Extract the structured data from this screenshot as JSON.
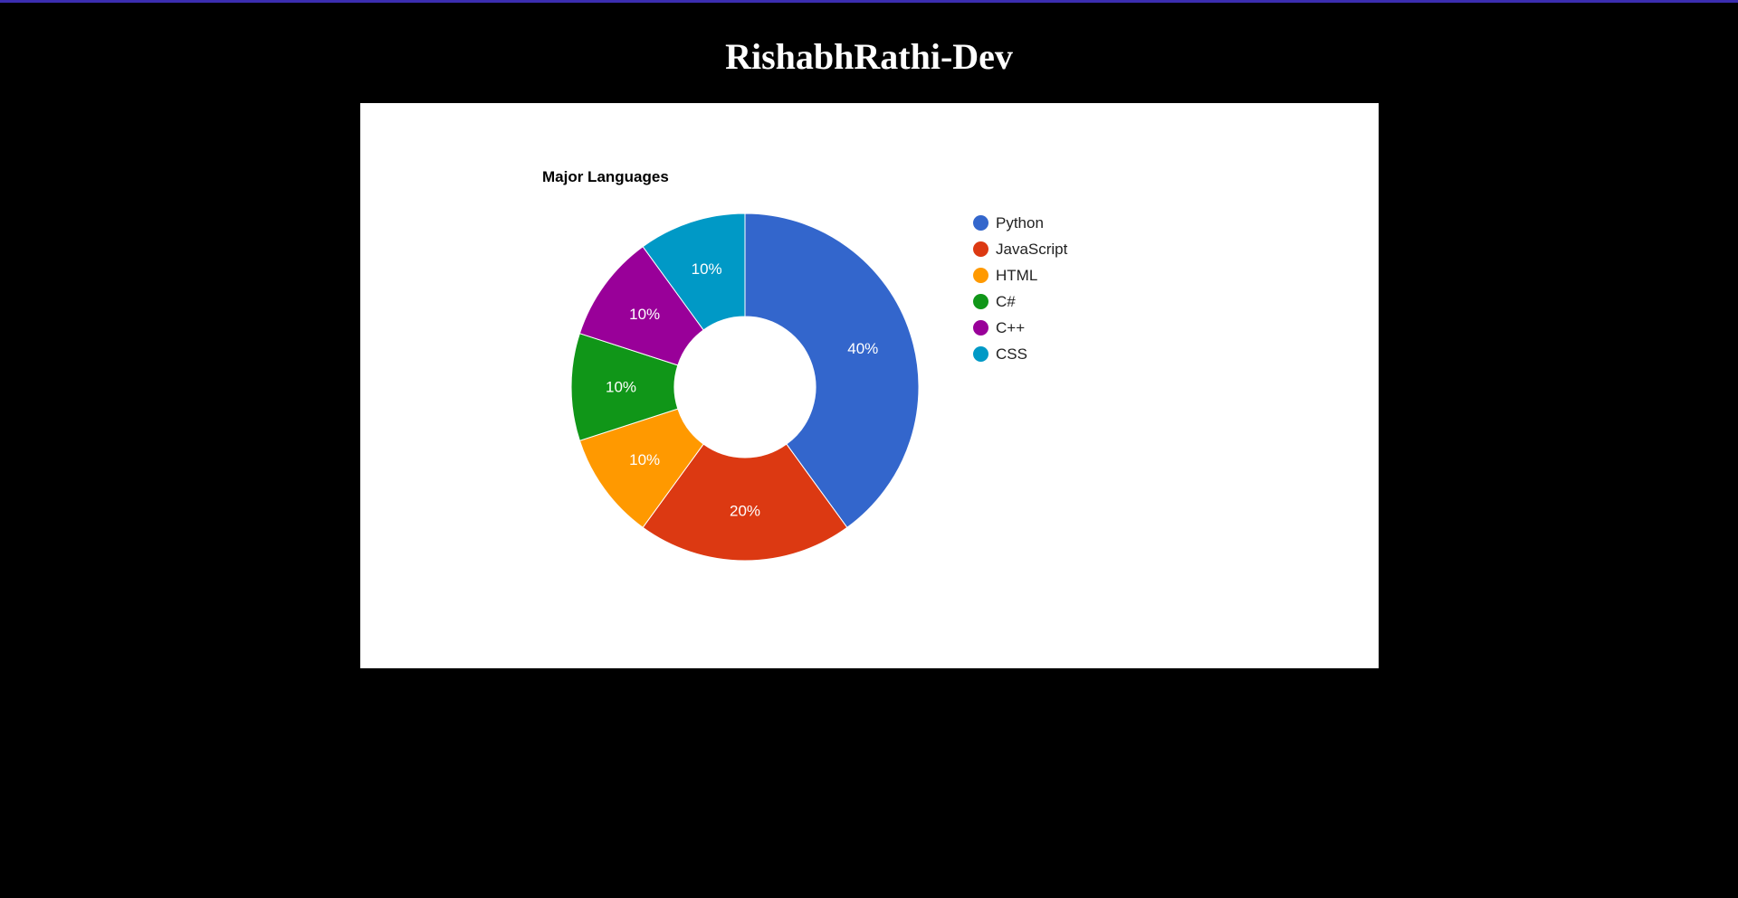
{
  "page": {
    "title": "RishabhRathi-Dev",
    "accent_color": "#3b2db0",
    "background": "#000000"
  },
  "chart_data": {
    "type": "pie",
    "variant": "donut",
    "title": "Major Languages",
    "categories": [
      "Python",
      "JavaScript",
      "HTML",
      "C#",
      "C++",
      "CSS"
    ],
    "values": [
      40,
      20,
      10,
      10,
      10,
      10
    ],
    "labels": [
      "40%",
      "20%",
      "10%",
      "10%",
      "10%",
      "10%"
    ],
    "colors": [
      "#3366cc",
      "#dc3912",
      "#ff9900",
      "#109618",
      "#990099",
      "#0099c6"
    ],
    "legend_position": "right",
    "start_angle": "top, clockwise"
  }
}
